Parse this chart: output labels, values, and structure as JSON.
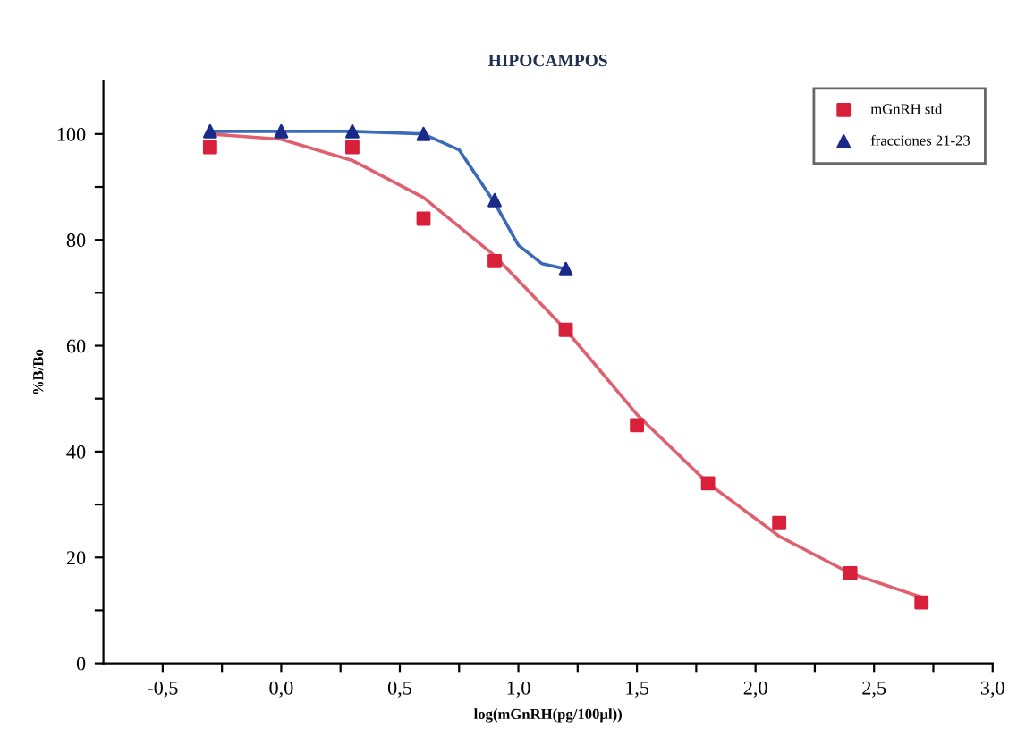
{
  "chart_data": {
    "type": "scatter",
    "title": "HIPOCAMPOS",
    "xlabel": "log(mGnRH(pg/100µl))",
    "ylabel": "%B/Bo",
    "xlim": [
      -0.75,
      3.0
    ],
    "xticks": [
      {
        "value": -0.5,
        "label": "-0,5"
      },
      {
        "value": -0.25,
        "label": null
      },
      {
        "value": 0.0,
        "label": "0,0"
      },
      {
        "value": 0.25,
        "label": null
      },
      {
        "value": 0.5,
        "label": "0,5"
      },
      {
        "value": 0.75,
        "label": null
      },
      {
        "value": 1.0,
        "label": "1,0"
      },
      {
        "value": 1.25,
        "label": null
      },
      {
        "value": 1.5,
        "label": "1,5"
      },
      {
        "value": 1.75,
        "label": null
      },
      {
        "value": 2.0,
        "label": "2,0"
      },
      {
        "value": 2.25,
        "label": null
      },
      {
        "value": 2.5,
        "label": "2,5"
      },
      {
        "value": 2.75,
        "label": null
      },
      {
        "value": 3.0,
        "label": "3,0"
      }
    ],
    "ylim": [
      0,
      110
    ],
    "yticks": [
      0,
      {
        "value": 10,
        "label": null
      },
      20,
      {
        "value": 30,
        "label": null
      },
      40,
      {
        "value": 50,
        "label": null
      },
      60,
      {
        "value": 70,
        "label": null
      },
      80,
      {
        "value": 90,
        "label": null
      },
      100
    ],
    "grid": false,
    "legend": "top right",
    "series": [
      {
        "type": "line",
        "color": "#e06070",
        "marker": "none",
        "x": [
          -0.3,
          0.0,
          0.3,
          0.6,
          0.9,
          1.2,
          1.5,
          1.8,
          2.1,
          2.4,
          2.7
        ],
        "values": [
          100,
          99,
          95,
          88,
          77,
          63,
          47,
          34,
          24,
          17,
          12.5
        ]
      },
      {
        "type": "line",
        "color": "#3a6ab8",
        "marker": "none",
        "x": [
          -0.3,
          0.0,
          0.3,
          0.6,
          0.75,
          0.9,
          1.0,
          1.1,
          1.2
        ],
        "values": [
          100.5,
          100.5,
          100.5,
          100,
          97,
          87,
          79,
          75.5,
          74.5
        ]
      },
      {
        "name": "mGnRH std",
        "color": "#d8203a",
        "marker": "square",
        "x": [
          -0.3,
          0.3,
          0.6,
          0.9,
          1.2,
          1.5,
          1.8,
          2.1,
          2.4,
          2.7
        ],
        "values": [
          97.5,
          97.5,
          84,
          76,
          63,
          45,
          34,
          26.5,
          17,
          11.5
        ]
      },
      {
        "name": "fracciones 21-23",
        "color": "#1a2a8a",
        "marker": "triangle",
        "x": [
          -0.3,
          0.0,
          0.3,
          0.6,
          0.9,
          1.2
        ],
        "values": [
          100.5,
          100.5,
          100.5,
          100,
          87.5,
          74.5
        ]
      }
    ]
  }
}
